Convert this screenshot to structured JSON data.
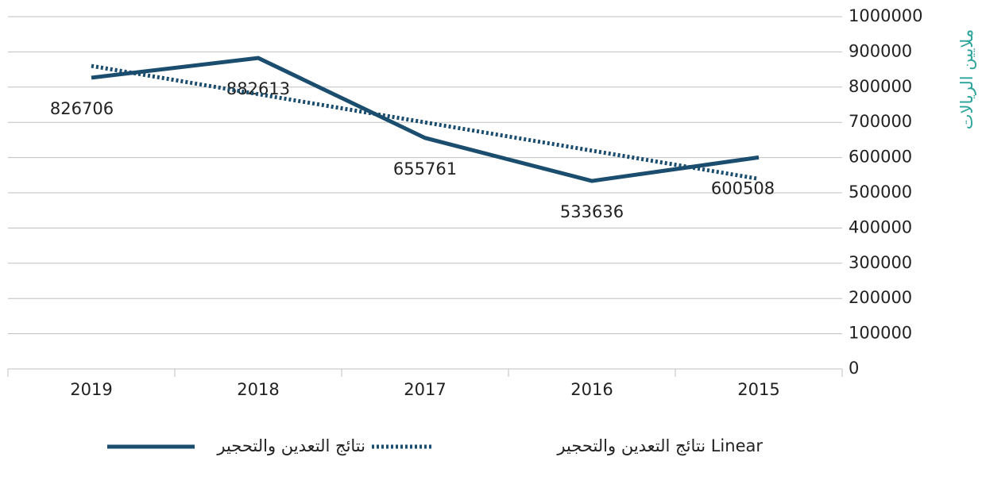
{
  "chart_data": {
    "type": "line",
    "y_label": "ملايين الريالات",
    "categories": [
      "2019",
      "2018",
      "2017",
      "2016",
      "2015"
    ],
    "series": [
      {
        "name": "نتائج التعدين والتحجير",
        "color": "#1b4d6e",
        "style": "solid",
        "values": [
          826706,
          882613,
          655761,
          533636,
          600508
        ],
        "data_labels": true
      },
      {
        "name": "Linear نتائج التعدين والتحجير",
        "color": "#1b4d6e",
        "style": "dotted",
        "values": [
          860119,
          779982,
          699845,
          619708,
          539570
        ],
        "data_labels": false
      }
    ],
    "ylim": [
      0,
      1000000
    ],
    "yticks": [
      0,
      100000,
      200000,
      300000,
      400000,
      500000,
      600000,
      700000,
      800000,
      900000,
      1000000
    ],
    "y_label_color": "#2aa39a",
    "grid": true
  }
}
